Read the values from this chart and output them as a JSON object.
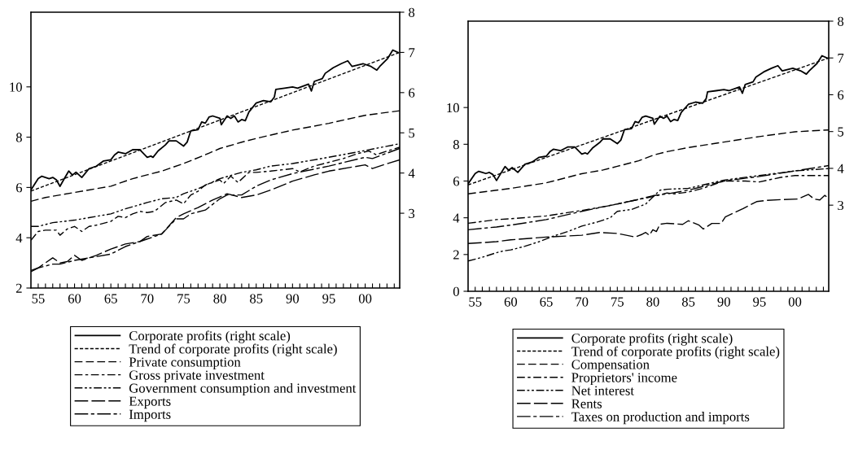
{
  "chart_data": [
    {
      "type": "line",
      "legend": "bottom",
      "grid": false,
      "xlim": [
        1954,
        2004.75
      ],
      "ylim": [
        2,
        12.97
      ],
      "y2lim": [
        1.14,
        8
      ],
      "xticks": [
        {
          "value": 1955,
          "label": "55"
        },
        {
          "value": 1956,
          "label": null
        },
        {
          "value": 1957,
          "label": null
        },
        {
          "value": 1958,
          "label": null
        },
        {
          "value": 1959,
          "label": null
        },
        {
          "value": 1960,
          "label": "60"
        },
        {
          "value": 1961,
          "label": null
        },
        {
          "value": 1962,
          "label": null
        },
        {
          "value": 1963,
          "label": null
        },
        {
          "value": 1964,
          "label": null
        },
        {
          "value": 1965,
          "label": "65"
        },
        {
          "value": 1966,
          "label": null
        },
        {
          "value": 1967,
          "label": null
        },
        {
          "value": 1968,
          "label": null
        },
        {
          "value": 1969,
          "label": null
        },
        {
          "value": 1970,
          "label": "70"
        },
        {
          "value": 1971,
          "label": null
        },
        {
          "value": 1972,
          "label": null
        },
        {
          "value": 1973,
          "label": null
        },
        {
          "value": 1974,
          "label": null
        },
        {
          "value": 1975,
          "label": "75"
        },
        {
          "value": 1976,
          "label": null
        },
        {
          "value": 1977,
          "label": null
        },
        {
          "value": 1978,
          "label": null
        },
        {
          "value": 1979,
          "label": null
        },
        {
          "value": 1980,
          "label": "80"
        },
        {
          "value": 1981,
          "label": null
        },
        {
          "value": 1982,
          "label": null
        },
        {
          "value": 1983,
          "label": null
        },
        {
          "value": 1984,
          "label": null
        },
        {
          "value": 1985,
          "label": "85"
        },
        {
          "value": 1986,
          "label": null
        },
        {
          "value": 1987,
          "label": null
        },
        {
          "value": 1988,
          "label": null
        },
        {
          "value": 1989,
          "label": null
        },
        {
          "value": 1990,
          "label": "90"
        },
        {
          "value": 1991,
          "label": null
        },
        {
          "value": 1992,
          "label": null
        },
        {
          "value": 1993,
          "label": null
        },
        {
          "value": 1994,
          "label": null
        },
        {
          "value": 1995,
          "label": "95"
        },
        {
          "value": 1996,
          "label": null
        },
        {
          "value": 1997,
          "label": null
        },
        {
          "value": 1998,
          "label": null
        },
        {
          "value": 1999,
          "label": null
        },
        {
          "value": 2000,
          "label": "00"
        },
        {
          "value": 2001,
          "label": null
        },
        {
          "value": 2002,
          "label": null
        },
        {
          "value": 2003,
          "label": null
        },
        {
          "value": 2004,
          "label": null
        }
      ],
      "yticks": [
        2,
        4,
        6,
        8,
        10
      ],
      "y2ticks": [
        3,
        4,
        5,
        6,
        7,
        8
      ],
      "series": [
        {
          "name": "Corporate profits (right scale)",
          "color": "#000000",
          "line_style": "solid",
          "axis": "y2",
          "x": [
            1954,
            1955,
            1955.5,
            1956,
            1956.5,
            1957,
            1957.5,
            1958,
            1958.5,
            1959.2,
            1959.7,
            1960.2,
            1961,
            1962,
            1963,
            1964,
            1965,
            1965.5,
            1966,
            1967,
            1968,
            1969,
            1970,
            1970.5,
            1970.8,
            1971.5,
            1972.5,
            1973,
            1974,
            1975,
            1975.5,
            1976,
            1977,
            1977.5,
            1978,
            1978.5,
            1979,
            1980,
            1980.2,
            1981,
            1981.5,
            1982,
            1982.5,
            1983,
            1983.5,
            1984,
            1985,
            1986,
            1987,
            1987.5,
            1987.7,
            1988.9,
            1990,
            1990.7,
            1992.2,
            1992.6,
            1993,
            1994.1,
            1994.5,
            1995.6,
            1996.7,
            1997.6,
            1998.2,
            1999.7,
            2000.8,
            2001.6,
            2002,
            2003.1,
            2003.8,
            2004.6
          ],
          "values": [
            3.58,
            3.86,
            3.92,
            3.89,
            3.86,
            3.89,
            3.83,
            3.67,
            3.83,
            4.05,
            3.95,
            4.02,
            3.89,
            4.11,
            4.17,
            4.3,
            4.33,
            4.45,
            4.52,
            4.48,
            4.58,
            4.58,
            4.39,
            4.42,
            4.39,
            4.55,
            4.7,
            4.8,
            4.8,
            4.67,
            4.77,
            5.05,
            5.08,
            5.27,
            5.24,
            5.39,
            5.42,
            5.36,
            5.2,
            5.42,
            5.36,
            5.42,
            5.27,
            5.33,
            5.3,
            5.52,
            5.74,
            5.8,
            5.77,
            5.89,
            6.08,
            6.11,
            6.14,
            6.11,
            6.21,
            6.04,
            6.28,
            6.35,
            6.48,
            6.62,
            6.72,
            6.79,
            6.65,
            6.72,
            6.65,
            6.56,
            6.65,
            6.85,
            7.06,
            6.99
          ]
        },
        {
          "name": "Trend of corporate profits (right scale)",
          "color": "#000000",
          "line_style": "dotted",
          "axis": "y2",
          "x": [
            1954,
            2004.75
          ],
          "values": [
            3.55,
            7.0
          ]
        },
        {
          "name": "Private consumption",
          "color": "#000000",
          "line_style": "dashed",
          "x": [
            1954,
            1956,
            1958,
            1960,
            1962,
            1965,
            1968,
            1970,
            1972,
            1975,
            1978,
            1980,
            1983,
            1985,
            1988,
            1990,
            1995,
            2000,
            2004.75
          ],
          "values": [
            5.45,
            5.6,
            5.7,
            5.8,
            5.9,
            6.05,
            6.35,
            6.5,
            6.65,
            6.95,
            7.3,
            7.55,
            7.8,
            7.95,
            8.15,
            8.28,
            8.55,
            8.87,
            9.05
          ]
        },
        {
          "name": "Gross private investment",
          "color": "#000000",
          "line_style": "dashdot",
          "x": [
            1954,
            1955,
            1956,
            1957.5,
            1958,
            1959,
            1960,
            1961,
            1962,
            1963,
            1965,
            1966,
            1967,
            1968,
            1969,
            1970,
            1971,
            1972.5,
            1974,
            1975,
            1976,
            1977,
            1978,
            1979,
            1980,
            1980.5,
            1981.5,
            1982.5,
            1984,
            1985,
            1987,
            1990,
            1991,
            1993,
            1995,
            1997,
            1999,
            2000.5,
            2001.5,
            2003,
            2004.75
          ],
          "values": [
            3.9,
            4.25,
            4.3,
            4.3,
            4.1,
            4.35,
            4.45,
            4.25,
            4.45,
            4.5,
            4.65,
            4.85,
            4.8,
            4.95,
            5.05,
            5.0,
            5.05,
            5.4,
            5.5,
            5.35,
            5.7,
            5.85,
            6.1,
            6.2,
            6.3,
            6.15,
            6.45,
            6.2,
            6.6,
            6.6,
            6.65,
            6.75,
            6.62,
            6.85,
            7.0,
            7.15,
            7.35,
            7.45,
            7.3,
            7.45,
            7.6
          ]
        },
        {
          "name": "Government consumption and investment",
          "color": "#000000",
          "line_style": "dashdotdot",
          "x": [
            1954,
            1955,
            1957,
            1960,
            1962,
            1965,
            1967,
            1970,
            1972,
            1974,
            1975,
            1977,
            1980,
            1983,
            1985,
            1987,
            1990,
            1995,
            2000,
            2004.75
          ],
          "values": [
            4.45,
            4.45,
            4.6,
            4.7,
            4.8,
            4.95,
            5.15,
            5.4,
            5.55,
            5.6,
            5.75,
            5.95,
            6.35,
            6.6,
            6.7,
            6.85,
            6.95,
            7.2,
            7.47,
            7.74
          ]
        },
        {
          "name": "Exports",
          "color": "#000000",
          "line_style": "longdash",
          "x": [
            1954,
            1955,
            1957,
            1958,
            1959,
            1960,
            1961,
            1963,
            1965,
            1967,
            1969,
            1970,
            1972,
            1974,
            1975,
            1977,
            1979,
            1981,
            1983,
            1985,
            1987,
            1990,
            1993,
            1995,
            1998,
            2000,
            2001,
            2002,
            2004.75
          ],
          "values": [
            2.7,
            2.8,
            3.2,
            3.0,
            3.05,
            3.3,
            3.1,
            3.3,
            3.55,
            3.75,
            3.85,
            4.05,
            4.15,
            4.8,
            4.95,
            5.2,
            5.5,
            5.75,
            5.6,
            5.7,
            5.9,
            6.25,
            6.5,
            6.65,
            6.8,
            6.9,
            6.75,
            6.85,
            7.1
          ]
        },
        {
          "name": "Imports",
          "color": "#000000",
          "line_style": "longdashdot",
          "x": [
            1954,
            1955,
            1957,
            1958,
            1960,
            1962,
            1965,
            1967,
            1970,
            1972,
            1974,
            1975,
            1976,
            1978,
            1980,
            1981,
            1983,
            1985,
            1987,
            1990,
            1995,
            2000,
            2001,
            2004.75
          ],
          "values": [
            2.65,
            2.8,
            2.95,
            2.95,
            3.1,
            3.2,
            3.35,
            3.65,
            3.95,
            4.15,
            4.75,
            4.75,
            4.95,
            5.1,
            5.55,
            5.7,
            5.7,
            6.05,
            6.3,
            6.55,
            6.85,
            7.2,
            7.15,
            7.55
          ]
        }
      ]
    },
    {
      "type": "line",
      "legend": "bottom",
      "grid": false,
      "xlim": [
        1954,
        2004.75
      ],
      "ylim": [
        0,
        14.7
      ],
      "y2lim": [
        0.66,
        8
      ],
      "xticks": [
        {
          "value": 1955,
          "label": "55"
        },
        {
          "value": 1956,
          "label": null
        },
        {
          "value": 1957,
          "label": null
        },
        {
          "value": 1958,
          "label": null
        },
        {
          "value": 1959,
          "label": null
        },
        {
          "value": 1960,
          "label": "60"
        },
        {
          "value": 1961,
          "label": null
        },
        {
          "value": 1962,
          "label": null
        },
        {
          "value": 1963,
          "label": null
        },
        {
          "value": 1964,
          "label": null
        },
        {
          "value": 1965,
          "label": "65"
        },
        {
          "value": 1966,
          "label": null
        },
        {
          "value": 1967,
          "label": null
        },
        {
          "value": 1968,
          "label": null
        },
        {
          "value": 1969,
          "label": null
        },
        {
          "value": 1970,
          "label": "70"
        },
        {
          "value": 1971,
          "label": null
        },
        {
          "value": 1972,
          "label": null
        },
        {
          "value": 1973,
          "label": null
        },
        {
          "value": 1974,
          "label": null
        },
        {
          "value": 1975,
          "label": "75"
        },
        {
          "value": 1976,
          "label": null
        },
        {
          "value": 1977,
          "label": null
        },
        {
          "value": 1978,
          "label": null
        },
        {
          "value": 1979,
          "label": null
        },
        {
          "value": 1980,
          "label": "80"
        },
        {
          "value": 1981,
          "label": null
        },
        {
          "value": 1982,
          "label": null
        },
        {
          "value": 1983,
          "label": null
        },
        {
          "value": 1984,
          "label": null
        },
        {
          "value": 1985,
          "label": "85"
        },
        {
          "value": 1986,
          "label": null
        },
        {
          "value": 1987,
          "label": null
        },
        {
          "value": 1988,
          "label": null
        },
        {
          "value": 1989,
          "label": null
        },
        {
          "value": 1990,
          "label": "90"
        },
        {
          "value": 1991,
          "label": null
        },
        {
          "value": 1992,
          "label": null
        },
        {
          "value": 1993,
          "label": null
        },
        {
          "value": 1994,
          "label": null
        },
        {
          "value": 1995,
          "label": "95"
        },
        {
          "value": 1996,
          "label": null
        },
        {
          "value": 1997,
          "label": null
        },
        {
          "value": 1998,
          "label": null
        },
        {
          "value": 1999,
          "label": null
        },
        {
          "value": 2000,
          "label": "00"
        },
        {
          "value": 2001,
          "label": null
        },
        {
          "value": 2002,
          "label": null
        },
        {
          "value": 2003,
          "label": null
        },
        {
          "value": 2004,
          "label": null
        }
      ],
      "yticks": [
        0,
        2,
        4,
        6,
        8,
        10
      ],
      "y2ticks": [
        3,
        4,
        5,
        6,
        7,
        8
      ],
      "series": [
        {
          "name": "Corporate profits (right scale)",
          "color": "#000000",
          "line_style": "solid",
          "axis": "y2",
          "x": [
            1954,
            1955,
            1955.5,
            1956,
            1956.5,
            1957,
            1957.5,
            1958,
            1958.5,
            1959.2,
            1959.7,
            1960.2,
            1961,
            1962,
            1963,
            1964,
            1965,
            1965.5,
            1966,
            1967,
            1968,
            1969,
            1970,
            1970.5,
            1970.8,
            1971.5,
            1972.5,
            1973,
            1974,
            1975,
            1975.5,
            1976,
            1977,
            1977.5,
            1978,
            1978.5,
            1979,
            1980,
            1980.2,
            1981,
            1981.5,
            1982,
            1982.5,
            1983,
            1983.5,
            1984,
            1985,
            1986,
            1987,
            1987.5,
            1987.7,
            1988.9,
            1990,
            1990.7,
            1992.2,
            1992.6,
            1993,
            1994.1,
            1994.5,
            1995.6,
            1996.7,
            1997.6,
            1998.2,
            1999.7,
            2000.8,
            2001.6,
            2002,
            2003.1,
            2003.8,
            2004.6
          ],
          "values": [
            3.58,
            3.86,
            3.92,
            3.89,
            3.86,
            3.89,
            3.83,
            3.67,
            3.83,
            4.05,
            3.95,
            4.02,
            3.89,
            4.11,
            4.17,
            4.3,
            4.33,
            4.45,
            4.52,
            4.48,
            4.58,
            4.58,
            4.39,
            4.42,
            4.39,
            4.55,
            4.7,
            4.8,
            4.8,
            4.67,
            4.77,
            5.05,
            5.08,
            5.27,
            5.24,
            5.39,
            5.42,
            5.36,
            5.2,
            5.42,
            5.36,
            5.42,
            5.27,
            5.33,
            5.3,
            5.52,
            5.74,
            5.8,
            5.77,
            5.89,
            6.08,
            6.11,
            6.14,
            6.11,
            6.21,
            6.04,
            6.28,
            6.35,
            6.48,
            6.62,
            6.72,
            6.79,
            6.65,
            6.72,
            6.65,
            6.56,
            6.65,
            6.85,
            7.06,
            6.99
          ]
        },
        {
          "name": "Trend of corporate profits (right scale)",
          "color": "#000000",
          "line_style": "dotted",
          "axis": "y2",
          "x": [
            1954,
            2004.75
          ],
          "values": [
            3.55,
            7.0
          ]
        },
        {
          "name": "Compensation",
          "color": "#000000",
          "line_style": "dashed",
          "x": [
            1954,
            1958,
            1960,
            1965,
            1968,
            1970,
            1973,
            1975,
            1978,
            1980,
            1982,
            1985,
            1990,
            1995,
            2000,
            2004.75
          ],
          "values": [
            5.3,
            5.5,
            5.6,
            5.9,
            6.2,
            6.4,
            6.6,
            6.8,
            7.1,
            7.4,
            7.6,
            7.82,
            8.12,
            8.42,
            8.68,
            8.78
          ]
        },
        {
          "name": "Proprietors' income",
          "color": "#000000",
          "line_style": "dashdot",
          "x": [
            1954,
            1958,
            1960,
            1965,
            1970,
            1973,
            1975,
            1978,
            1980,
            1982,
            1983,
            1985,
            1987,
            1990,
            1993,
            1995,
            1998,
            2000,
            2002,
            2004.75
          ],
          "values": [
            3.7,
            3.9,
            3.95,
            4.1,
            4.4,
            4.6,
            4.75,
            5.0,
            5.15,
            5.35,
            5.3,
            5.4,
            5.6,
            6.0,
            6.0,
            5.95,
            6.2,
            6.3,
            6.3,
            6.3
          ]
        },
        {
          "name": "Net interest",
          "color": "#000000",
          "line_style": "dashdotdot",
          "x": [
            1954,
            1956,
            1958,
            1959,
            1960,
            1962,
            1964,
            1966,
            1968,
            1970,
            1972,
            1974,
            1975,
            1977,
            1979,
            1981,
            1982,
            1985,
            1990,
            1995,
            2000,
            2004.75
          ],
          "values": [
            1.65,
            1.85,
            2.1,
            2.2,
            2.25,
            2.45,
            2.7,
            3.0,
            3.25,
            3.55,
            3.75,
            4.0,
            4.35,
            4.45,
            4.75,
            5.5,
            5.55,
            5.6,
            6.05,
            6.3,
            6.55,
            6.68
          ]
        },
        {
          "name": "Rents",
          "color": "#000000",
          "line_style": "longdash",
          "x": [
            1954,
            1958,
            1960,
            1965,
            1970,
            1972.5,
            1975,
            1977.5,
            1978.5,
            1979,
            1979.5,
            1980,
            1980.5,
            1981,
            1982,
            1984.2,
            1985,
            1986.5,
            1987.1,
            1988.3,
            1989.6,
            1990.2,
            1991.9,
            1992.7,
            1994.6,
            1996.1,
            1998.1,
            2000.4,
            2001.9,
            2002.7,
            2003.5,
            2004.2,
            2004.75
          ],
          "values": [
            2.6,
            2.7,
            2.8,
            2.95,
            3.05,
            3.2,
            3.15,
            2.95,
            3.1,
            3.2,
            3.05,
            3.35,
            3.25,
            3.65,
            3.7,
            3.64,
            3.84,
            3.6,
            3.39,
            3.69,
            3.69,
            4.05,
            4.36,
            4.5,
            4.88,
            4.95,
            4.99,
            5.02,
            5.27,
            5.02,
            4.97,
            5.22,
            5.04
          ]
        },
        {
          "name": "Taxes on production and imports",
          "color": "#000000",
          "line_style": "longdashdot",
          "x": [
            1954,
            1958,
            1960,
            1965,
            1970,
            1975,
            1978,
            1980,
            1982,
            1985,
            1990,
            1995,
            2000,
            2004.75
          ],
          "values": [
            3.35,
            3.5,
            3.6,
            3.9,
            4.35,
            4.75,
            5.0,
            5.2,
            5.3,
            5.5,
            6.0,
            6.25,
            6.55,
            6.84
          ]
        }
      ]
    }
  ]
}
